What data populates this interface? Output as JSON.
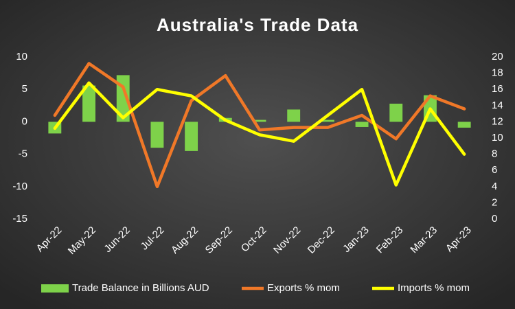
{
  "chart_data": {
    "type": "bar",
    "title": "Australia's Trade Data",
    "categories": [
      "Apr-22",
      "May-22",
      "Jun-22",
      "Jul-22",
      "Aug-22",
      "Sep-22",
      "Oct-22",
      "Nov-22",
      "Dec-22",
      "Jan-23",
      "Feb-23",
      "Mar-23",
      "Apr-23"
    ],
    "series": [
      {
        "name": "Trade Balance in Billions AUD",
        "type": "bar",
        "color": "#7ed24a",
        "values": [
          -1.8,
          5.6,
          7.2,
          -4.0,
          -4.5,
          0.6,
          0.3,
          1.9,
          0.3,
          -0.8,
          2.8,
          4.1,
          -0.9
        ]
      },
      {
        "name": "Exports % mom",
        "type": "line",
        "axis": "y2",
        "color": "#f07828",
        "values": [
          12.8,
          19.2,
          16.3,
          4.0,
          14.6,
          17.7,
          11.0,
          11.3,
          11.3,
          12.8,
          9.9,
          15.2,
          13.6
        ]
      },
      {
        "name": "Imports % mom",
        "type": "line",
        "axis": "y2",
        "color": "#ffff00",
        "values": [
          11.2,
          16.8,
          12.5,
          16.0,
          15.2,
          12.2,
          10.4,
          9.6,
          12.8,
          16.0,
          4.2,
          13.6,
          8.0
        ]
      }
    ],
    "ylim": [
      -15,
      10
    ],
    "yticks": [
      -15,
      -10,
      -5,
      0,
      5,
      10
    ],
    "y2lim": [
      0,
      20
    ],
    "y2ticks": [
      0,
      2,
      4,
      6,
      8,
      10,
      12,
      14,
      16,
      18,
      20
    ],
    "grid": false,
    "legend": "bottom"
  }
}
